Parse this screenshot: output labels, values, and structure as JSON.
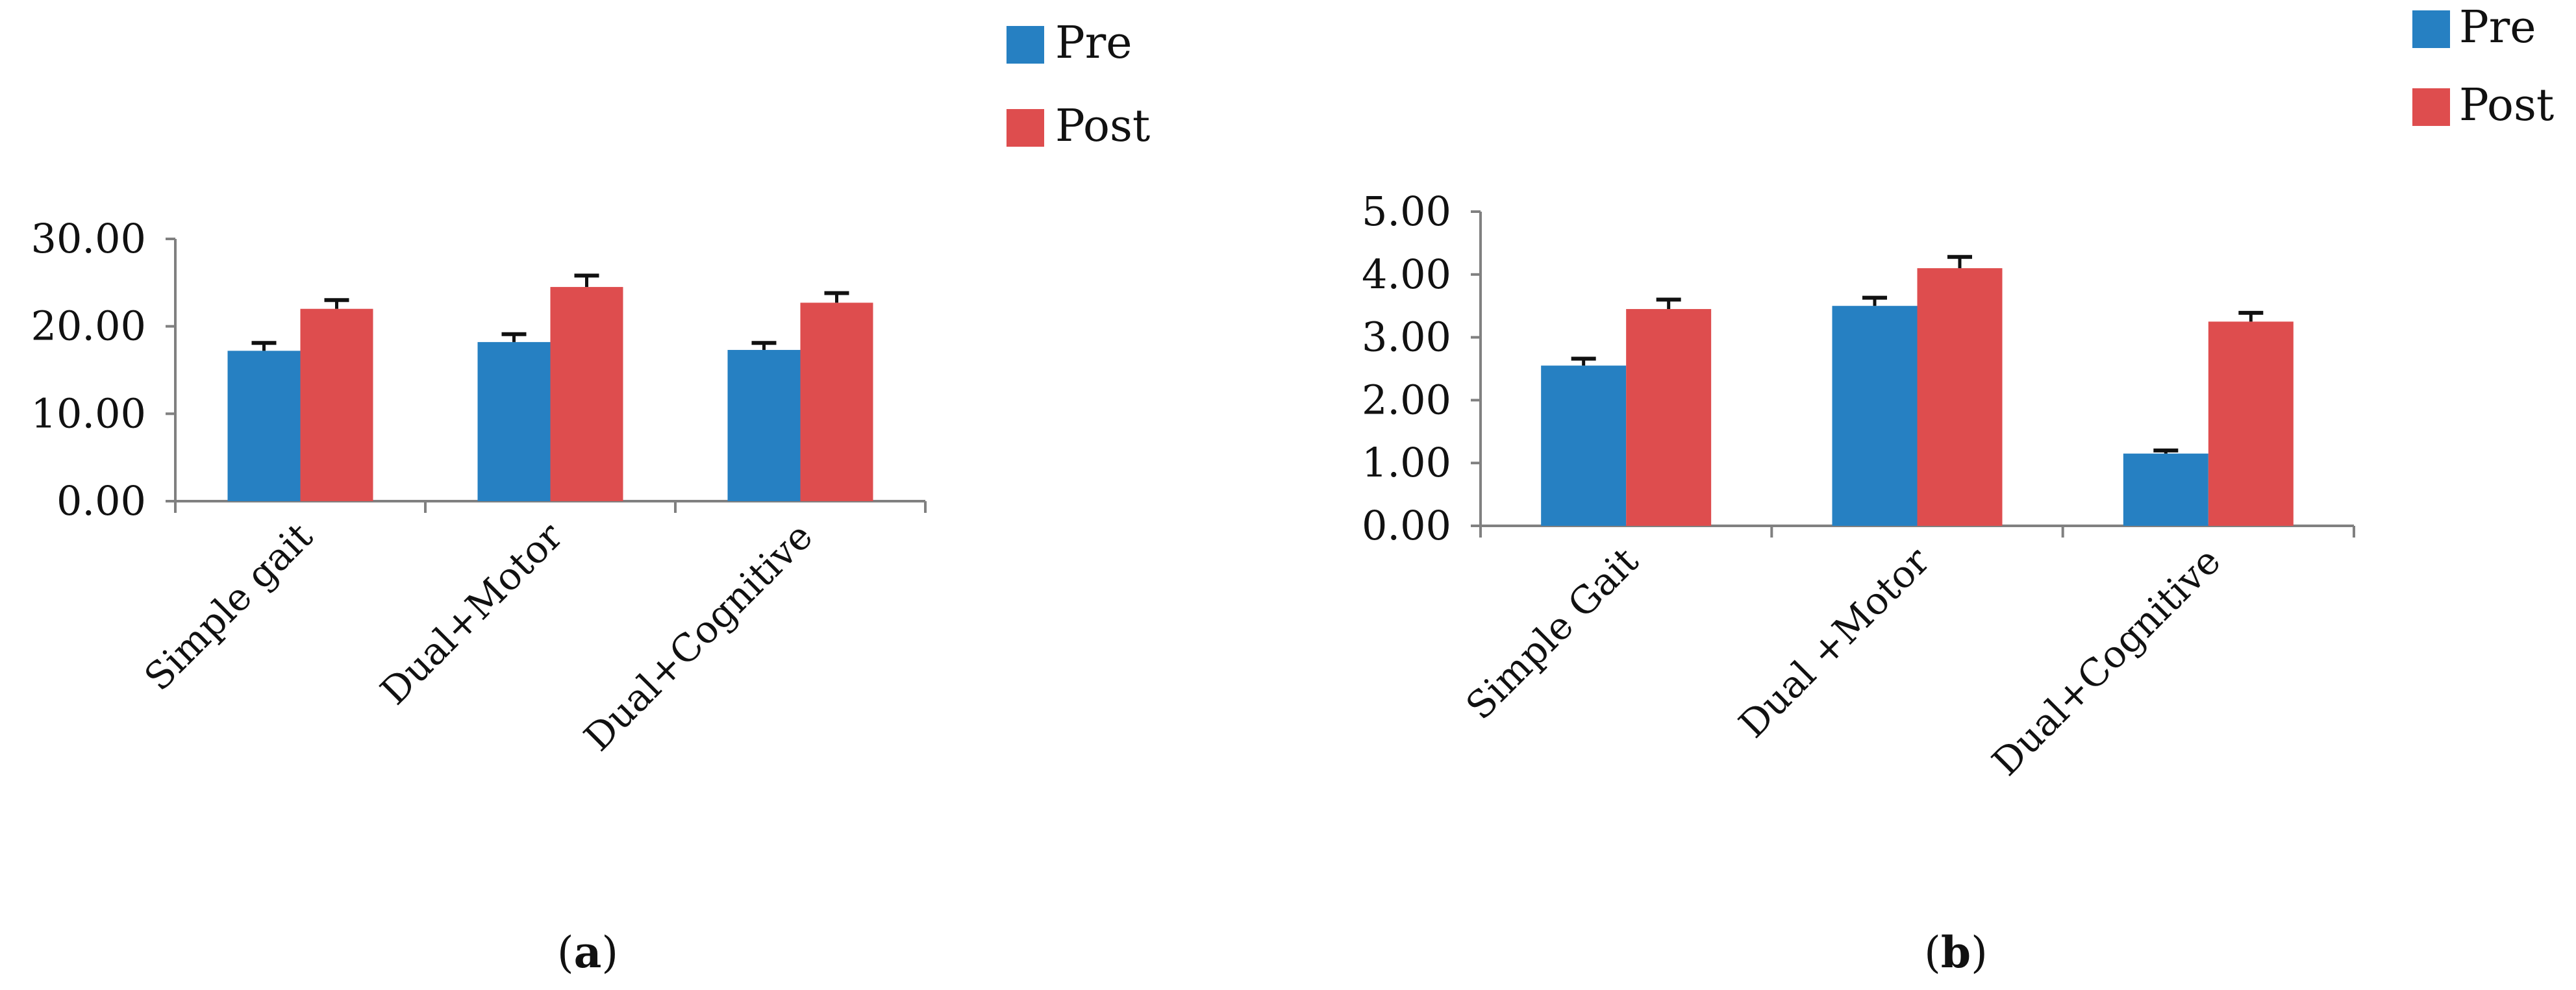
{
  "chart_data": [
    {
      "type": "bar",
      "panel": "a",
      "categories": [
        "Simple gait",
        "Dual+Motor",
        "Dual+Cognitive"
      ],
      "series": [
        {
          "name": "Pre",
          "color": "#2680C2",
          "values": [
            17.2,
            18.2,
            17.3
          ],
          "errors": [
            0.9,
            0.9,
            0.8
          ]
        },
        {
          "name": "Post",
          "color": "#DE4D4E",
          "values": [
            22.0,
            24.5,
            22.7
          ],
          "errors": [
            1.0,
            1.3,
            1.1
          ]
        }
      ],
      "yticks": [
        "0.00",
        "10.00",
        "20.00",
        "30.00"
      ],
      "ylim": [
        0,
        30
      ],
      "title": "",
      "xlabel": "",
      "ylabel": "",
      "legend_position": "top-right",
      "caption_open": "(",
      "caption_letter": "a",
      "caption_close": ")"
    },
    {
      "type": "bar",
      "panel": "b",
      "categories": [
        "Simple Gait",
        "Dual +Motor",
        "Dual+Cognitive"
      ],
      "series": [
        {
          "name": "Pre",
          "color": "#2680C2",
          "values": [
            2.55,
            3.5,
            1.15
          ],
          "errors": [
            0.11,
            0.13,
            0.05
          ]
        },
        {
          "name": "Post",
          "color": "#DE4D4E",
          "values": [
            3.45,
            4.1,
            3.25
          ],
          "errors": [
            0.15,
            0.18,
            0.14
          ]
        }
      ],
      "yticks": [
        "0.00",
        "1.00",
        "2.00",
        "3.00",
        "4.00",
        "5.00"
      ],
      "ylim": [
        0,
        5
      ],
      "title": "",
      "xlabel": "",
      "ylabel": "",
      "legend_position": "top-right",
      "caption_open": "(",
      "caption_letter": "b",
      "caption_close": ")"
    }
  ]
}
